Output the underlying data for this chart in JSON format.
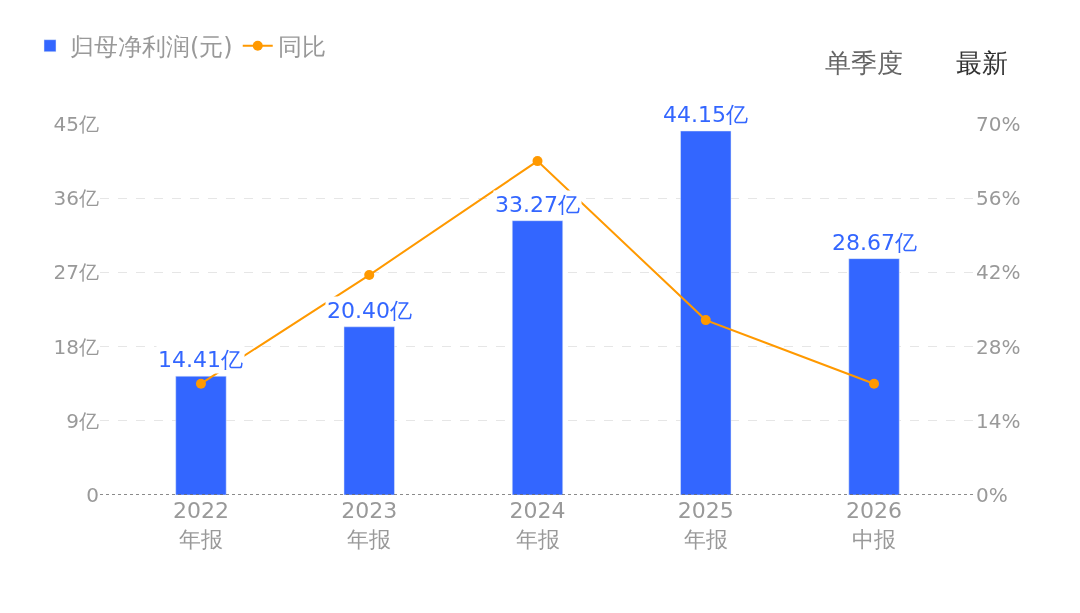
{
  "chart_data": {
    "type": "bar",
    "categories": [
      "2022\n年报",
      "2023\n年报",
      "2024\n年报",
      "2025\n年报",
      "2026\n中报"
    ],
    "series": [
      {
        "name": "归母净利润(元)",
        "color": "#3366ff",
        "values": [
          14.41,
          20.4,
          33.27,
          44.15,
          28.67
        ],
        "value_labels": [
          "14.41亿",
          "20.40亿",
          "33.27亿",
          "44.15亿",
          "28.67亿"
        ]
      },
      {
        "name": "同比",
        "type": "line",
        "axis": "y2",
        "color": "#ff9900",
        "marker": "circle",
        "values": [
          21,
          41.5,
          63,
          33,
          21
        ]
      }
    ],
    "ylim": [
      0,
      45
    ],
    "yticks": [
      0,
      {
        "value": 9,
        "label": "9亿"
      },
      {
        "value": 18,
        "label": "18亿"
      },
      {
        "value": 27,
        "label": "27亿"
      },
      {
        "value": 36,
        "label": "36亿"
      },
      {
        "value": 45,
        "label": "45亿"
      }
    ],
    "y2lim": [
      0,
      70
    ],
    "y2ticks": [
      {
        "value": 0,
        "label": "0%"
      },
      {
        "value": 14,
        "label": "14%"
      },
      {
        "value": 28,
        "label": "28%"
      },
      {
        "value": 42,
        "label": "42%"
      },
      {
        "value": 56,
        "label": "56%"
      },
      {
        "value": 70,
        "label": "70%"
      }
    ],
    "grid": "y",
    "legend": "top left",
    "annotations": [
      "单季度",
      "最新"
    ]
  }
}
